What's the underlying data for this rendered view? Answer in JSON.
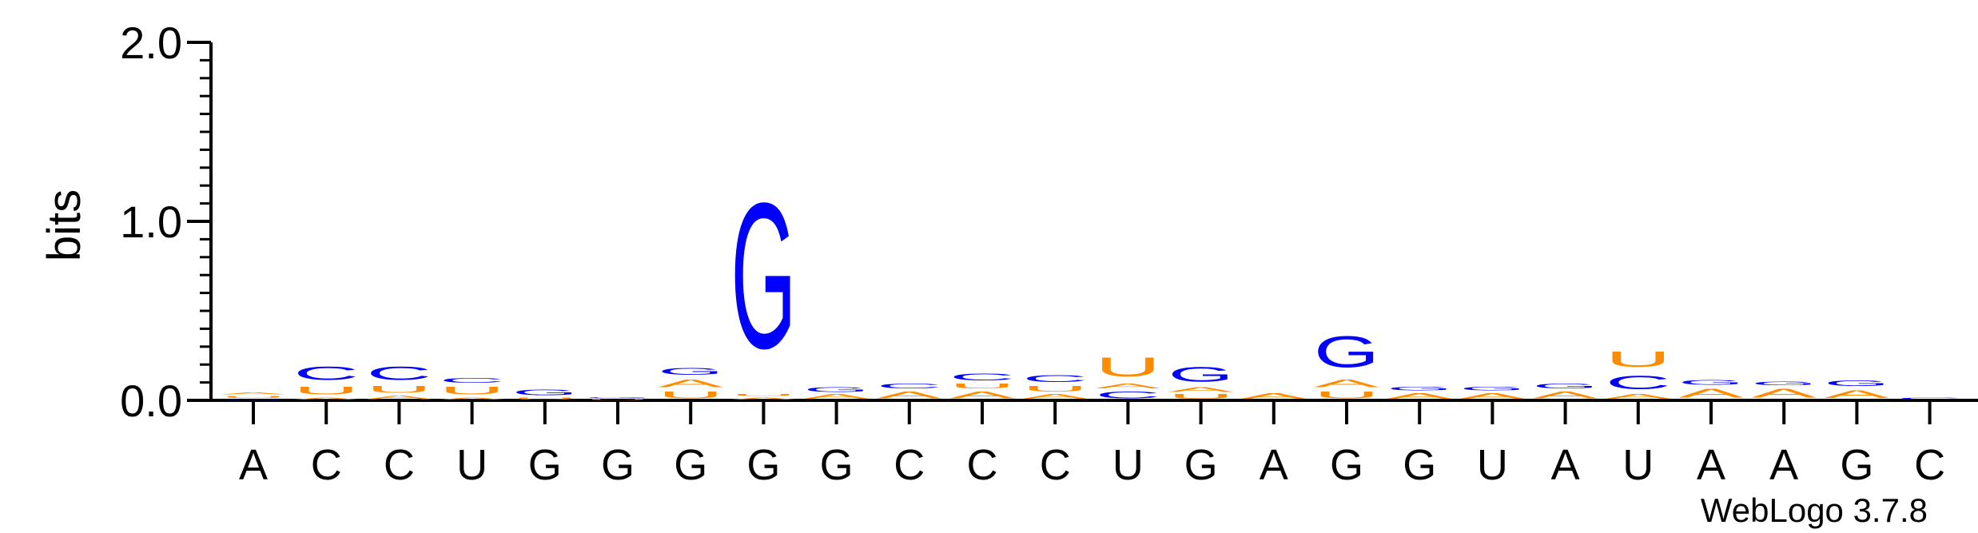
{
  "chart_data": {
    "type": "sequence-logo",
    "ylabel": "bits",
    "ylim": [
      0,
      2.0
    ],
    "yticks": [
      "0.0",
      "1.0",
      "2.0"
    ],
    "credit": "WebLogo 3.7.8",
    "colors": {
      "A": "#ff8c00",
      "U": "#ff8c00",
      "C": "#0000ff",
      "G": "#0000ff"
    },
    "positions": [
      {
        "label": "A",
        "stack": [
          [
            "C",
            0.01
          ],
          [
            "U",
            0.02
          ],
          [
            "A",
            0.02
          ]
        ]
      },
      {
        "label": "C",
        "stack": [
          [
            "A",
            0.02
          ],
          [
            "U",
            0.07
          ],
          [
            "C",
            0.12
          ]
        ]
      },
      {
        "label": "C",
        "stack": [
          [
            "A",
            0.03
          ],
          [
            "U",
            0.06
          ],
          [
            "C",
            0.12
          ]
        ]
      },
      {
        "label": "U",
        "stack": [
          [
            "A",
            0.02
          ],
          [
            "U",
            0.07
          ],
          [
            "C",
            0.04
          ]
        ]
      },
      {
        "label": "G",
        "stack": [
          [
            "U",
            0.02
          ],
          [
            "G",
            0.05
          ]
        ]
      },
      {
        "label": "G",
        "stack": [
          [
            "U",
            0.01
          ],
          [
            "G",
            0.01
          ]
        ]
      },
      {
        "label": "G",
        "stack": [
          [
            "U",
            0.06
          ],
          [
            "A",
            0.07
          ],
          [
            "G",
            0.06
          ]
        ]
      },
      {
        "label": "G",
        "stack": [
          [
            "A",
            0.02
          ],
          [
            "U",
            0.02
          ],
          [
            "G",
            1.3
          ]
        ]
      },
      {
        "label": "G",
        "stack": [
          [
            "A",
            0.04
          ],
          [
            "G",
            0.04
          ]
        ]
      },
      {
        "label": "C",
        "stack": [
          [
            "A",
            0.06
          ],
          [
            "C",
            0.04
          ]
        ]
      },
      {
        "label": "C",
        "stack": [
          [
            "A",
            0.06
          ],
          [
            "U",
            0.04
          ],
          [
            "C",
            0.06
          ]
        ]
      },
      {
        "label": "C",
        "stack": [
          [
            "A",
            0.04
          ],
          [
            "U",
            0.05
          ],
          [
            "C",
            0.06
          ]
        ]
      },
      {
        "label": "U",
        "stack": [
          [
            "C",
            0.06
          ],
          [
            "A",
            0.04
          ],
          [
            "U",
            0.17
          ]
        ]
      },
      {
        "label": "G",
        "stack": [
          [
            "U",
            0.04
          ],
          [
            "A",
            0.04
          ],
          [
            "G",
            0.13
          ]
        ]
      },
      {
        "label": "A",
        "stack": [
          [
            "A",
            0.05
          ]
        ]
      },
      {
        "label": "G",
        "stack": [
          [
            "U",
            0.06
          ],
          [
            "A",
            0.07
          ],
          [
            "G",
            0.28
          ]
        ]
      },
      {
        "label": "G",
        "stack": [
          [
            "A",
            0.05
          ],
          [
            "G",
            0.03
          ]
        ]
      },
      {
        "label": "U",
        "stack": [
          [
            "A",
            0.05
          ],
          [
            "G",
            0.03
          ]
        ]
      },
      {
        "label": "A",
        "stack": [
          [
            "A",
            0.06
          ],
          [
            "G",
            0.04
          ]
        ]
      },
      {
        "label": "U",
        "stack": [
          [
            "A",
            0.04
          ],
          [
            "C",
            0.12
          ],
          [
            "U",
            0.14
          ]
        ]
      },
      {
        "label": "A",
        "stack": [
          [
            "A",
            0.08
          ],
          [
            "G",
            0.04
          ]
        ]
      },
      {
        "label": "A",
        "stack": [
          [
            "A",
            0.08
          ],
          [
            "G",
            0.03
          ]
        ]
      },
      {
        "label": "G",
        "stack": [
          [
            "A",
            0.07
          ],
          [
            "G",
            0.05
          ]
        ]
      },
      {
        "label": "C",
        "stack": [
          [
            "C",
            0.02
          ]
        ]
      }
    ]
  }
}
